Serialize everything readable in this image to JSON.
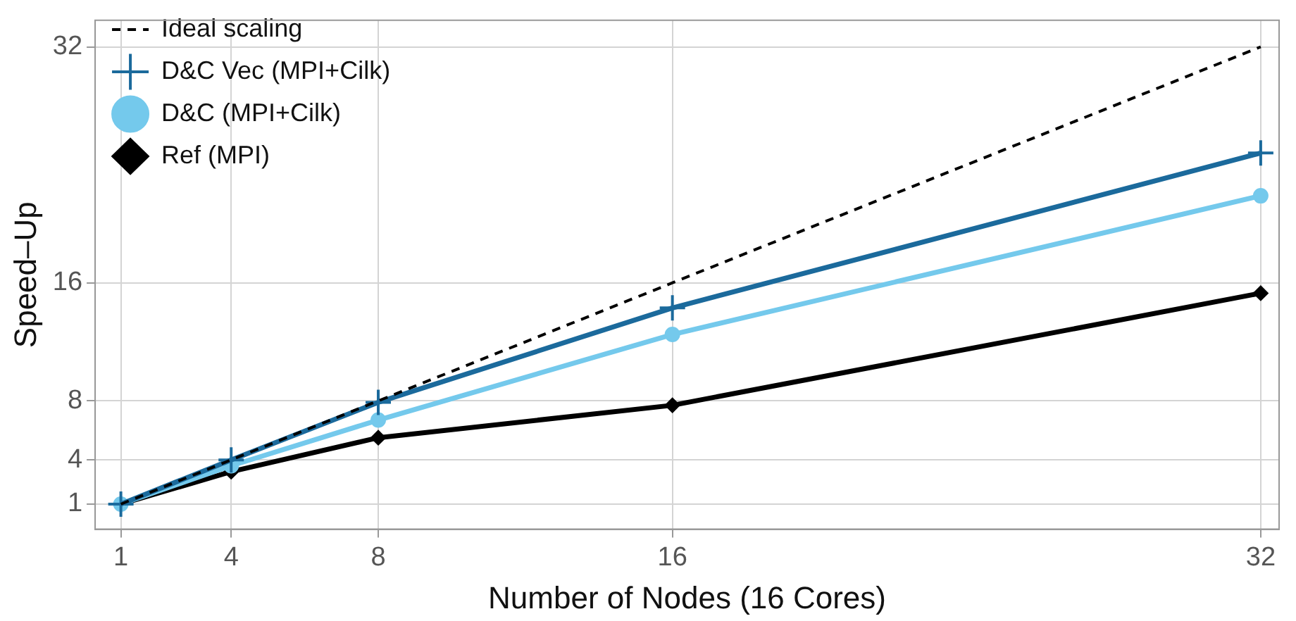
{
  "chart_data": {
    "type": "line",
    "xlabel": "Number of Nodes (16 Cores)",
    "ylabel": "Speed–Up",
    "x": [
      1,
      4,
      8,
      16,
      32
    ],
    "series": [
      {
        "name": "Ideal scaling",
        "color": "#000000",
        "values": [
          1,
          4,
          8,
          16,
          32
        ],
        "marker": "none",
        "line_style": "dashed"
      },
      {
        "name": "D&C Vec (MPI+Cilk)",
        "color": "#1b6a9c",
        "values": [
          1,
          4,
          7.9,
          14.3,
          24.8
        ],
        "marker": "cross",
        "line_style": "solid"
      },
      {
        "name": "D&C (MPI+Cilk)",
        "color": "#74c9ec",
        "values": [
          1,
          3.6,
          6.7,
          12.5,
          21.9
        ],
        "marker": "circle",
        "line_style": "solid"
      },
      {
        "name": "Ref (MPI)",
        "color": "#000000",
        "values": [
          1,
          3.2,
          5.5,
          7.7,
          15.3
        ],
        "marker": "diamond",
        "line_style": "solid"
      }
    ],
    "xlim": [
      0.3,
      32.5
    ],
    "xticks": [
      1,
      4,
      8,
      16,
      32
    ],
    "ylim": [
      -0.7,
      33.8
    ],
    "yticks": [
      1,
      4,
      8,
      16,
      32
    ],
    "grid": true,
    "legend": "top left"
  }
}
